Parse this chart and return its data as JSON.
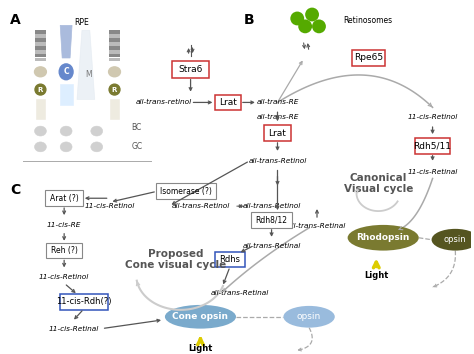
{
  "bg_color": "#ffffff",
  "section_A": "A",
  "section_B": "B",
  "section_C": "C",
  "rpe_label": "RPE",
  "bc_label": "BC",
  "gc_label": "GC",
  "retinosomes_label": "Retinosomes",
  "canonical_label": "Canonical\nVisual cycle",
  "proposed_label": "Proposed\nCone visual cycle",
  "stra6": "Stra6",
  "lrat1": "Lrat",
  "lrat2": "Lrat",
  "rpe65": "Rpe65",
  "rdh511": "Rdh5/11",
  "rdh812": "Rdh8/12",
  "rdhs": "Rdhs",
  "isomerase": "Isomerase (?)",
  "arat": "Arat (?)",
  "reh": "Reh (?)",
  "rdh11cis": "11-cis-Rdh(?)",
  "rhodopsin": "Rhodopsin",
  "opsin1": "opsin",
  "cone_opsin": "Cone opsin",
  "opsin2": "opsin",
  "light": "Light",
  "gray": "#888888",
  "dgray": "#555555",
  "lgray": "#aaaaaa",
  "red_edge": "#cc3333",
  "blue_edge": "#3355bb",
  "olive": "#7a7a30",
  "dark_olive": "#555520",
  "green_blob": "#55aa00",
  "blue_ellipse": "#7aaacc",
  "blue_ellipse2": "#99bbdd",
  "yellow_arrow": "#ddcc00",
  "box_gray_edge": "#888888"
}
